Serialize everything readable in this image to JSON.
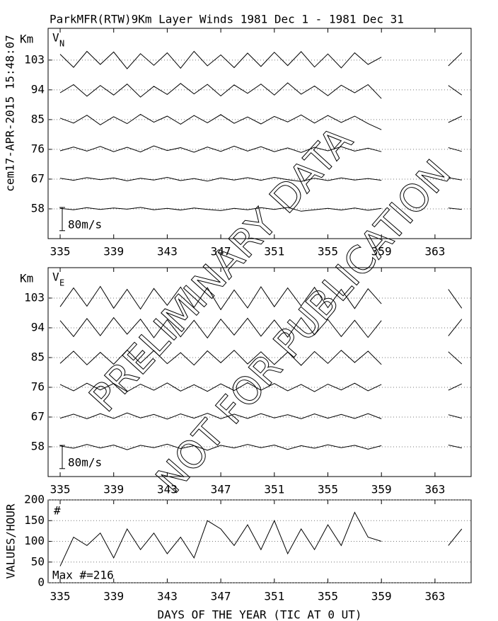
{
  "side_label": "cem17-APR-2015 15:48:07",
  "annotations": [
    "PRELIMINARY DATA",
    "NOT FOR PUBLICATION"
  ],
  "chart_data": [
    {
      "type": "line",
      "title": "ParkMFR(RTW)9Km Layer Winds 1981 Dec  1 - 1981 Dec 31",
      "panel_label": "V",
      "panel_label_sub": "N",
      "ylabel": "Km",
      "xlim": [
        334.1,
        365.7
      ],
      "xticks": [
        335,
        339,
        343,
        347,
        351,
        355,
        359,
        363
      ],
      "ylim": [
        49,
        112.6
      ],
      "yticks": [
        103,
        94,
        85,
        76,
        67,
        58
      ],
      "grid": true,
      "scale_bar": {
        "value": 80,
        "label": "80m/s"
      },
      "x": [
        335,
        336,
        337,
        338,
        339,
        340,
        341,
        342,
        343,
        344,
        345,
        346,
        347,
        348,
        349,
        350,
        351,
        352,
        353,
        354,
        355,
        356,
        357,
        358,
        359,
        360,
        361,
        362,
        363,
        364,
        365
      ],
      "series": [
        {
          "color": "#000000",
          "values": [
            20,
            -25,
            30,
            -15,
            28,
            -30,
            22,
            -18,
            25,
            -28,
            30,
            -20,
            18,
            -26,
            24,
            -22,
            27,
            -19,
            29,
            -24,
            21,
            -27,
            25,
            -15,
            10,
            null,
            null,
            null,
            null,
            -20,
            25
          ]
        },
        {
          "color": "#000000",
          "values": [
            -10,
            18,
            -22,
            15,
            -18,
            20,
            -25,
            12,
            -16,
            22,
            -14,
            19,
            -21,
            17,
            -12,
            20,
            -18,
            24,
            -15,
            13,
            -20,
            16,
            -10,
            18,
            -30,
            null,
            null,
            null,
            null,
            15,
            -18
          ]
        },
        {
          "color": "#000000",
          "values": [
            5,
            -12,
            15,
            -18,
            10,
            -14,
            18,
            -9,
            12,
            -16,
            14,
            -11,
            17,
            -13,
            9,
            -15,
            11,
            -8,
            16,
            -12,
            14,
            -10,
            12,
            -14,
            -35,
            null,
            null,
            null,
            null,
            -10,
            12
          ]
        },
        {
          "color": "#000000",
          "values": [
            -5,
            8,
            -6,
            10,
            -8,
            7,
            -9,
            12,
            -4,
            6,
            -10,
            8,
            -7,
            11,
            -6,
            9,
            -8,
            5,
            -11,
            7,
            -5,
            9,
            -6,
            4,
            -8,
            null,
            null,
            null,
            null,
            6,
            -7
          ]
        },
        {
          "color": "#000000",
          "values": [
            3,
            -4,
            5,
            -2,
            4,
            -6,
            3,
            -3,
            6,
            -5,
            2,
            -7,
            4,
            -3,
            5,
            -4,
            6,
            -2,
            -8,
            3,
            -5,
            4,
            -3,
            2,
            -4,
            null,
            null,
            null,
            null,
            5,
            -3
          ]
        },
        {
          "color": "#000000",
          "values": [
            2,
            -3,
            4,
            -2,
            3,
            -1,
            5,
            -3,
            2,
            -4,
            3,
            -2,
            -6,
            2,
            -3,
            4,
            -2,
            5,
            -8,
            -3,
            2,
            -4,
            3,
            -5,
            2,
            null,
            null,
            null,
            null,
            3,
            -2
          ]
        }
      ]
    },
    {
      "type": "line",
      "panel_label": "V",
      "panel_label_sub": "E",
      "ylabel": "Km",
      "xlim": [
        334.1,
        365.7
      ],
      "xticks": [
        335,
        339,
        343,
        347,
        351,
        355,
        359,
        363
      ],
      "ylim": [
        49,
        112.2
      ],
      "yticks": [
        103,
        94,
        85,
        76,
        67,
        58
      ],
      "grid": true,
      "scale_bar": {
        "value": 80,
        "label": "80m/s"
      },
      "x": [
        335,
        336,
        337,
        338,
        339,
        340,
        341,
        342,
        343,
        344,
        345,
        346,
        347,
        348,
        349,
        350,
        351,
        352,
        353,
        354,
        355,
        356,
        357,
        358,
        359,
        360,
        361,
        362,
        363,
        364,
        365
      ],
      "series": [
        {
          "color": "#000000",
          "values": [
            -30,
            35,
            -28,
            40,
            -35,
            30,
            -38,
            33,
            -25,
            38,
            -32,
            36,
            -40,
            28,
            -34,
            39,
            -30,
            35,
            -27,
            37,
            -33,
            30,
            -36,
            32,
            -20,
            null,
            null,
            null,
            null,
            30,
            -35
          ]
        },
        {
          "color": "#000000",
          "values": [
            25,
            -30,
            32,
            -27,
            35,
            -22,
            30,
            -34,
            28,
            -31,
            26,
            -35,
            30,
            -25,
            33,
            -29,
            27,
            -32,
            35,
            -24,
            29,
            -30,
            26,
            -33,
            25,
            null,
            null,
            null,
            null,
            -28,
            30
          ]
        },
        {
          "color": "#000000",
          "values": [
            -20,
            22,
            -25,
            18,
            -23,
            26,
            -19,
            24,
            -21,
            17,
            -26,
            23,
            -18,
            25,
            -22,
            20,
            -24,
            19,
            -27,
            21,
            -20,
            25,
            -17,
            22,
            -24,
            null,
            null,
            null,
            null,
            20,
            -22
          ]
        },
        {
          "color": "#000000",
          "values": [
            10,
            -12,
            14,
            -9,
            13,
            -15,
            11,
            -10,
            15,
            -13,
            9,
            -14,
            12,
            -11,
            16,
            -10,
            13,
            -12,
            10,
            -15,
            11,
            -9,
            14,
            -12,
            10,
            null,
            null,
            null,
            null,
            -10,
            12
          ]
        },
        {
          "color": "#000000",
          "values": [
            -4,
            10,
            -6,
            12,
            -5,
            14,
            -3,
            9,
            -7,
            11,
            -4,
            13,
            -6,
            10,
            -5,
            12,
            -3,
            8,
            -6,
            11,
            -4,
            9,
            -5,
            12,
            -6,
            null,
            null,
            null,
            null,
            8,
            -4
          ]
        },
        {
          "color": "#000000",
          "values": [
            3,
            -5,
            8,
            -4,
            6,
            -10,
            5,
            -3,
            9,
            -6,
            4,
            -12,
            5,
            -4,
            8,
            -3,
            6,
            -9,
            4,
            -5,
            7,
            -3,
            5,
            -8,
            4,
            null,
            null,
            null,
            null,
            6,
            -4
          ]
        }
      ]
    },
    {
      "type": "line",
      "ylabel": "VALUES/HOUR",
      "annotation": "#",
      "max_label": "Max #=216",
      "xlabel": "DAYS OF THE YEAR (TIC AT 0 UT)",
      "xlim": [
        334.1,
        365.7
      ],
      "xticks": [
        335,
        339,
        343,
        347,
        351,
        355,
        359,
        363
      ],
      "ylim": [
        0,
        200
      ],
      "yticks": [
        0,
        50,
        100,
        150,
        200
      ],
      "grid": true,
      "x": [
        335,
        336,
        337,
        338,
        339,
        340,
        341,
        342,
        343,
        344,
        345,
        346,
        347,
        348,
        349,
        350,
        351,
        352,
        353,
        354,
        355,
        356,
        357,
        358,
        359,
        360,
        361,
        362,
        363,
        364,
        365
      ],
      "series": [
        {
          "color": "#000000",
          "values": [
            40,
            110,
            90,
            120,
            60,
            130,
            80,
            120,
            70,
            110,
            60,
            150,
            130,
            90,
            140,
            80,
            150,
            70,
            130,
            80,
            140,
            90,
            170,
            110,
            100,
            null,
            null,
            null,
            null,
            90,
            130
          ]
        }
      ]
    }
  ]
}
